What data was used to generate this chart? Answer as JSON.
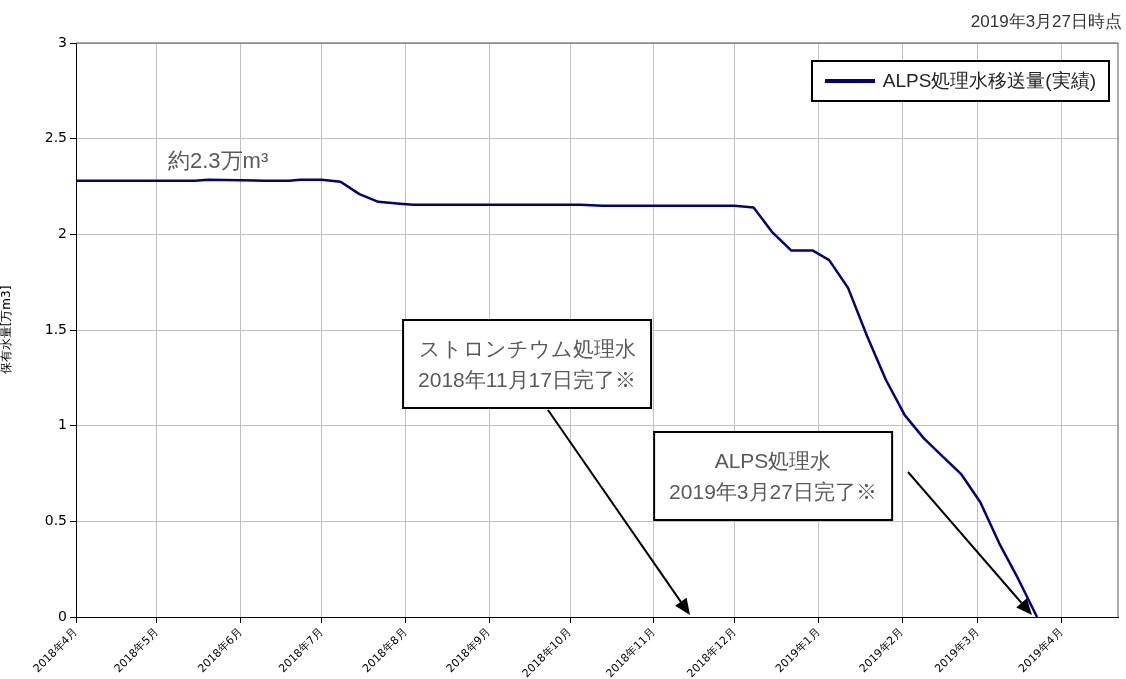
{
  "chart_data": {
    "type": "line",
    "ylabel": "保有水量[万m3]",
    "annotations": [
      "2019年3月27日時点",
      "約2.3万m³",
      "ストロンチウム処理水\n2018年11月17日完了※",
      "ALPS処理水\n2019年3月27日完了※"
    ],
    "x": [
      "2018-04-01",
      "2018-05-15",
      "2018-05-20",
      "2018-06-10",
      "2018-06-19",
      "2018-06-23",
      "2018-07-01",
      "2018-07-08",
      "2018-07-15",
      "2018-07-22",
      "2018-07-30",
      "2018-08-04",
      "2018-10-05",
      "2018-10-13",
      "2018-12-01",
      "2018-12-08",
      "2018-12-15",
      "2018-12-22",
      "2018-12-30",
      "2019-01-05",
      "2019-01-12",
      "2019-01-19",
      "2019-01-26",
      "2019-02-02",
      "2019-02-09",
      "2019-02-16",
      "2019-02-23",
      "2019-03-02",
      "2019-03-09",
      "2019-03-16",
      "2019-03-23"
    ],
    "series": [
      {
        "name": "ALPS処理水移送量(実績)",
        "color": "#000080",
        "values": [
          2.28,
          2.28,
          2.285,
          2.28,
          2.28,
          2.285,
          2.285,
          2.275,
          2.21,
          2.17,
          2.16,
          2.155,
          2.155,
          2.15,
          2.15,
          2.14,
          2.01,
          1.915,
          1.915,
          1.865,
          1.72,
          1.47,
          1.24,
          1.055,
          0.935,
          0.84,
          0.745,
          0.6,
          0.385,
          0.2,
          0
        ]
      }
    ],
    "xlim": [
      "2018-04-01",
      "2019-04-22"
    ],
    "xticks": [
      {
        "value": "2018-04",
        "label": "2018年4月"
      },
      {
        "value": "2018-05",
        "label": "2018年5月"
      },
      {
        "value": "2018-06",
        "label": "2018年6月"
      },
      {
        "value": "2018-07",
        "label": "2018年7月"
      },
      {
        "value": "2018-08",
        "label": "2018年8月"
      },
      {
        "value": "2018-09",
        "label": "2018年9月"
      },
      {
        "value": "2018-10",
        "label": "2018年10月"
      },
      {
        "value": "2018-11",
        "label": "2018年11月"
      },
      {
        "value": "2018-12",
        "label": "2018年12月"
      },
      {
        "value": "2019-01",
        "label": "2019年1月"
      },
      {
        "value": "2019-02",
        "label": "2019年2月"
      },
      {
        "value": "2019-03",
        "label": "2019年3月"
      },
      {
        "value": "2019-04",
        "label": "2019年4月"
      }
    ],
    "ylim": [
      0,
      3
    ],
    "yticks": [
      0,
      0.5,
      1,
      1.5,
      2,
      2.5,
      3
    ],
    "grid": true,
    "legend": "top right",
    "marker": "none",
    "line_style": "solid"
  }
}
